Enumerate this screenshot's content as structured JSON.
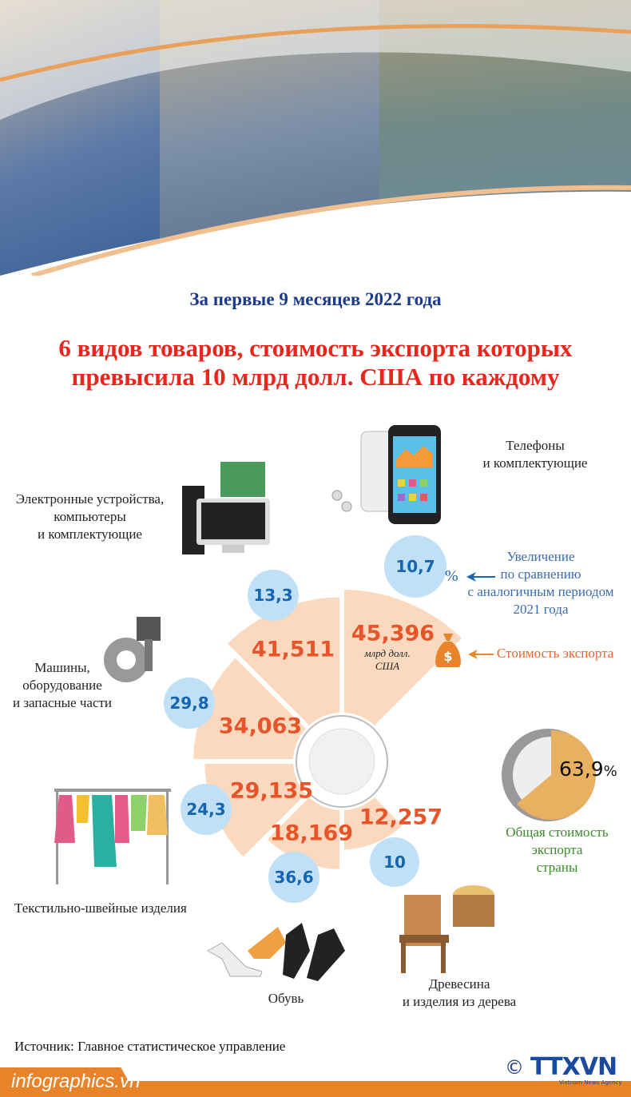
{
  "subtitle": "За первые 9 месяцев 2022 года",
  "title_line1": "6 видов товаров, стоимость экспорта которых",
  "title_line2": "превысила 10 млрд долл. США по каждому",
  "unit": "млрд долл. США",
  "legend": {
    "growth": [
      "Увеличение",
      "по сравнению",
      "с аналогичным периодом",
      "2021 года"
    ],
    "growth_unit": "%",
    "value": "Стоимость экспорта"
  },
  "share": {
    "value": "63,9",
    "unit": "%",
    "label": [
      "Общая стоимость",
      "экспорта",
      "страны"
    ],
    "fraction": 0.639
  },
  "categories": {
    "phones": [
      "Телефоны",
      "и комплектующие"
    ],
    "electronics": [
      "Электронные устройства,",
      "компьютеры",
      "и комплектующие"
    ],
    "machinery": [
      "Машины,",
      "оборудование",
      "и запасные части"
    ],
    "textiles": [
      "Текстильно-швейные изделия"
    ],
    "footwear": [
      "Обувь"
    ],
    "wood": [
      "Древесина",
      "и изделия из дерева"
    ]
  },
  "source": "Источник: Главное статистическое управление",
  "brand": "infographics.vn",
  "agency": "TTXVN",
  "agency_sub": "Vietnam News Agency",
  "colors": {
    "sector": "#fbd9be",
    "value": "#e8542a",
    "bubble": "#bfe0f7",
    "bubble_text": "#1565b0",
    "title": "#e8261c",
    "subtitle": "#1a3a8a",
    "share": "#e8b060"
  },
  "chart_data": {
    "type": "polar-area",
    "unit": "млрд долл. США",
    "categories": [
      "Телефоны и комплектующие",
      "Электронные устройства, компьютеры и комплектующие",
      "Машины, оборудование и запасные части",
      "Текстильно-швейные изделия",
      "Обувь",
      "Древесина и изделия из дерева"
    ],
    "values": [
      45.396,
      41.511,
      34.063,
      29.135,
      18.169,
      12.257
    ],
    "value_labels": [
      "45,396",
      "41,511",
      "34,063",
      "29,135",
      "18,169",
      "12,257"
    ],
    "growth_percent": [
      10.7,
      13.3,
      29.8,
      24.3,
      36.6,
      10
    ],
    "growth_labels": [
      "10,7",
      "13,3",
      "29,8",
      "24,3",
      "36,6",
      "10"
    ]
  }
}
